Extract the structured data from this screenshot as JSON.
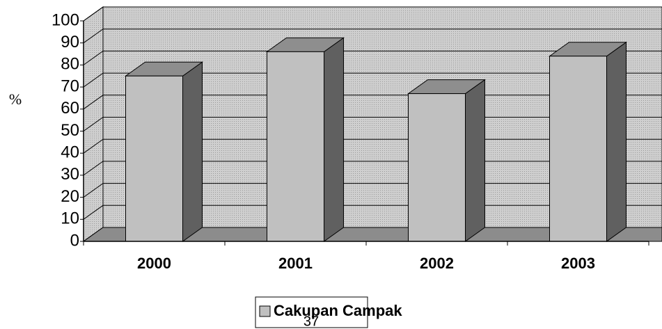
{
  "chart_data": {
    "type": "bar3d",
    "ylabel": "%",
    "legend": "Cakupan Campak",
    "series": [
      {
        "name": "Cakupan Campak",
        "color": "#c0c0c0",
        "values": [
          75,
          86,
          67,
          84
        ]
      }
    ],
    "categories": [
      "2000",
      "2001",
      "2002",
      "2003"
    ],
    "ylim": [
      0,
      100
    ],
    "yticks": [
      0,
      10,
      20,
      30,
      40,
      50,
      60,
      70,
      80,
      90,
      100
    ],
    "grid": true
  },
  "page_number": "37"
}
